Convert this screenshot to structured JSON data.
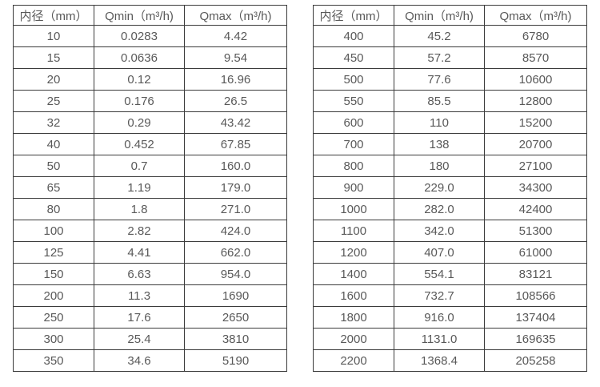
{
  "colors": {
    "background": "#ffffff",
    "border": "#3b3b3b",
    "text": "#595959"
  },
  "chart_data": [
    {
      "type": "table",
      "name": "flow-table-small-diameters",
      "headers": [
        "内径（mm）",
        "Qmin（m³/h)",
        "Qmax（m³/h)"
      ],
      "rows": [
        [
          "10",
          "0.0283",
          "4.42"
        ],
        [
          "15",
          "0.0636",
          "9.54"
        ],
        [
          "20",
          "0.12",
          "16.96"
        ],
        [
          "25",
          "0.176",
          "26.5"
        ],
        [
          "32",
          "0.29",
          "43.42"
        ],
        [
          "40",
          "0.452",
          "67.85"
        ],
        [
          "50",
          "0.7",
          "160.0"
        ],
        [
          "65",
          "1.19",
          "179.0"
        ],
        [
          "80",
          "1.8",
          "271.0"
        ],
        [
          "100",
          "2.82",
          "424.0"
        ],
        [
          "125",
          "4.41",
          "662.0"
        ],
        [
          "150",
          "6.63",
          "954.0"
        ],
        [
          "200",
          "11.3",
          "1690"
        ],
        [
          "250",
          "17.6",
          "2650"
        ],
        [
          "300",
          "25.4",
          "3810"
        ],
        [
          "350",
          "34.6",
          "5190"
        ]
      ]
    },
    {
      "type": "table",
      "name": "flow-table-large-diameters",
      "headers": [
        "内径（mm）",
        "Qmin（m³/h)",
        "Qmax（m³/h)"
      ],
      "rows": [
        [
          "400",
          "45.2",
          "6780"
        ],
        [
          "450",
          "57.2",
          "8570"
        ],
        [
          "500",
          "77.6",
          "10600"
        ],
        [
          "550",
          "85.5",
          "12800"
        ],
        [
          "600",
          "110",
          "15200"
        ],
        [
          "700",
          "138",
          "20700"
        ],
        [
          "800",
          "180",
          "27100"
        ],
        [
          "900",
          "229.0",
          "34300"
        ],
        [
          "1000",
          "282.0",
          "42400"
        ],
        [
          "1100",
          "342.0",
          "51300"
        ],
        [
          "1200",
          "407.0",
          "61000"
        ],
        [
          "1400",
          "554.1",
          "83121"
        ],
        [
          "1600",
          "732.7",
          "108566"
        ],
        [
          "1800",
          "916.0",
          "137404"
        ],
        [
          "2000",
          "1131.0",
          "169635"
        ],
        [
          "2200",
          "1368.4",
          "205258"
        ]
      ]
    }
  ]
}
